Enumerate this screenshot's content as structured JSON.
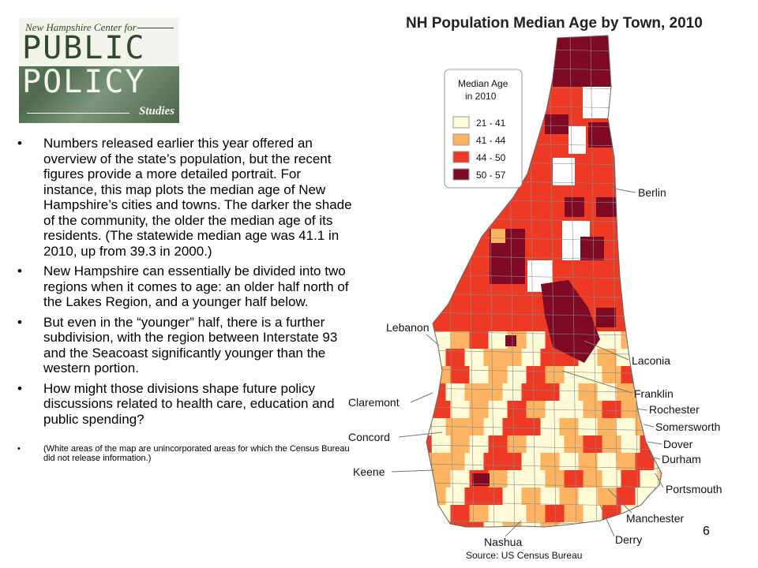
{
  "logo": {
    "line1": "New Hampshire Center for",
    "line2": "PUBLIC",
    "line3": "POLICY",
    "line4": "Studies"
  },
  "bullets": [
    "Numbers released earlier this year offered an overview of the state’s population, but the recent figures provide a more detailed portrait. For instance, this map plots the median age of New Hampshire’s cities and towns. The darker the shade of the community, the older the median age of its residents. (The statewide median age was 41.1 in 2010, up from 39.3 in 2000.)",
    "New Hampshire can essentially be divided into two regions when it comes to age: an older half north of the Lakes Region, and a younger half below.",
    "But even in the “younger” half, there is a further subdivision, with the region between Interstate 93 and the Seacoast significantly younger than the western portion.",
    "How might those divisions shape future policy discussions related to health care, education and public spending?"
  ],
  "note": "(White areas of the map are unincorporated areas for which the Census Bureau did not release information.)",
  "page_number": "6",
  "map": {
    "title": "NH Population Median Age by Town, 2010",
    "legend": {
      "title_line1": "Median Age",
      "title_line2": "in 2010",
      "classes": [
        {
          "label": "21 - 41",
          "color": "#fffbd6"
        },
        {
          "label": "41 - 44",
          "color": "#fdb462"
        },
        {
          "label": "44 - 50",
          "color": "#ee3a24"
        },
        {
          "label": "50 - 57",
          "color": "#7f0a26"
        }
      ]
    },
    "cities": [
      "Berlin",
      "Lebanon",
      "Laconia",
      "Franklin",
      "Claremont",
      "Rochester",
      "Somersworth",
      "Concord",
      "Dover",
      "Durham",
      "Keene",
      "Portsmouth",
      "Manchester",
      "Nashua",
      "Derry"
    ],
    "source": "Source:  US Census Bureau"
  }
}
